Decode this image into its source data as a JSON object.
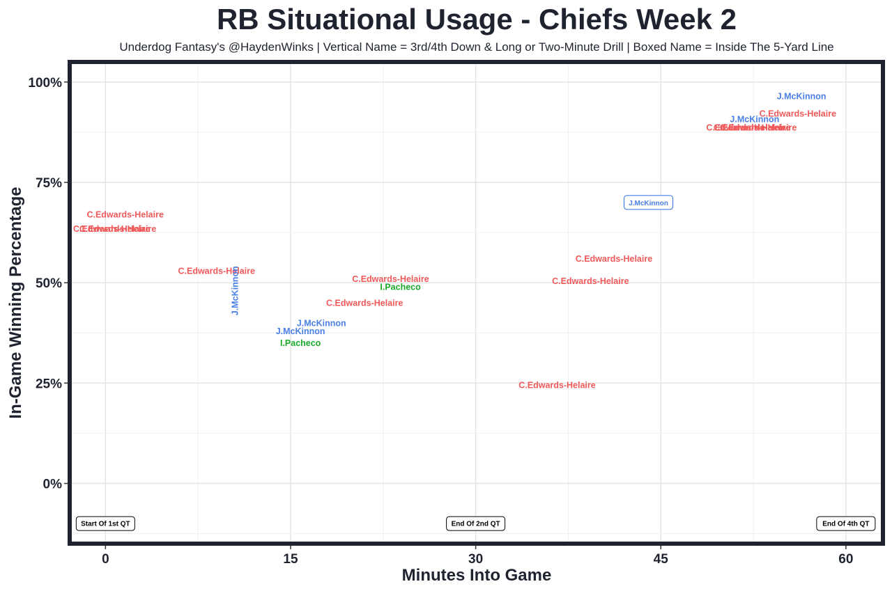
{
  "chart_data": {
    "type": "scatter",
    "title": "RB Situational Usage - Chiefs Week 2",
    "subtitle": "Underdog Fantasy's @HaydenWinks | Vertical Name = 3rd/4th Down & Long or Two-Minute Drill | Boxed Name = Inside The 5-Yard Line",
    "xlabel": "Minutes Into Game",
    "ylabel": "In-Game Winning Percentage",
    "xlim": [
      -2.9,
      63
    ],
    "ylim": [
      -15,
      105
    ],
    "x_ticks": [
      0,
      15,
      30,
      45,
      60
    ],
    "x_tick_labels": [
      "0",
      "15",
      "30",
      "45",
      "60"
    ],
    "y_ticks": [
      0,
      25,
      50,
      75,
      100
    ],
    "y_tick_labels": [
      "0%",
      "25%",
      "50%",
      "75%",
      "100%"
    ],
    "grid": true,
    "colors": {
      "C.Edwards-Helaire": "#f0595a",
      "J.McKinnon": "#4a7fe5",
      "I.Pacheco": "#1aaa2a"
    },
    "points": [
      {
        "x": 1.0,
        "y": 63.5,
        "label": "C.Edwards-Helaire",
        "style": "normal"
      },
      {
        "x": 0.5,
        "y": 63.5,
        "label": "C.Edwards-Helaire",
        "style": "normal"
      },
      {
        "x": 1.6,
        "y": 67,
        "label": "C.Edwards-Helaire",
        "style": "normal"
      },
      {
        "x": 9.0,
        "y": 53,
        "label": "C.Edwards-Helaire",
        "style": "normal"
      },
      {
        "x": 10.5,
        "y": 48,
        "label": "J.McKinnon",
        "style": "vertical"
      },
      {
        "x": 15.8,
        "y": 38,
        "label": "J.McKinnon",
        "style": "normal"
      },
      {
        "x": 15.8,
        "y": 35,
        "label": "I.Pacheco",
        "style": "normal"
      },
      {
        "x": 17.5,
        "y": 40,
        "label": "J.McKinnon",
        "style": "normal"
      },
      {
        "x": 21.0,
        "y": 45,
        "label": "C.Edwards-Helaire",
        "style": "normal"
      },
      {
        "x": 23.1,
        "y": 51,
        "label": "C.Edwards-Helaire",
        "style": "normal"
      },
      {
        "x": 23.9,
        "y": 49,
        "label": "I.Pacheco",
        "style": "normal"
      },
      {
        "x": 36.6,
        "y": 24.5,
        "label": "C.Edwards-Helaire",
        "style": "normal"
      },
      {
        "x": 39.3,
        "y": 50.5,
        "label": "C.Edwards-Helaire",
        "style": "normal"
      },
      {
        "x": 41.2,
        "y": 56,
        "label": "C.Edwards-Helaire",
        "style": "normal"
      },
      {
        "x": 44.0,
        "y": 70,
        "label": "J.McKinnon",
        "style": "boxed"
      },
      {
        "x": 51.8,
        "y": 88.7,
        "label": "C.Edwards-Helaire",
        "style": "normal"
      },
      {
        "x": 52.4,
        "y": 88.7,
        "label": "C.Edwards-Helaire",
        "style": "normal"
      },
      {
        "x": 52.9,
        "y": 88.7,
        "label": "C.Edwards-Helaire",
        "style": "normal"
      },
      {
        "x": 52.6,
        "y": 90.8,
        "label": "J.McKinnon",
        "style": "normal"
      },
      {
        "x": 56.1,
        "y": 92.2,
        "label": "C.Edwards-Helaire",
        "style": "normal"
      },
      {
        "x": 56.4,
        "y": 96.5,
        "label": "J.McKinnon",
        "style": "normal"
      }
    ],
    "quarter_markers": [
      {
        "x": 0,
        "label": "Start Of 1st QT"
      },
      {
        "x": 30,
        "label": "End Of 2nd QT"
      },
      {
        "x": 60,
        "label": "End Of 4th QT"
      }
    ],
    "quarter_marker_y": -10
  }
}
